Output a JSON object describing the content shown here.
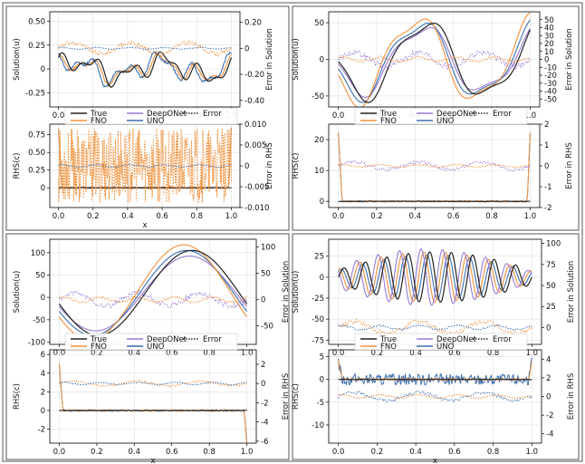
{
  "colors": {
    "true": "#222222",
    "fno": "#f0913a",
    "deeponet": "#9a7ad6",
    "uno": "#3a6fb0",
    "error_default": "#3a6fb0"
  },
  "legend": {
    "entries": [
      {
        "key": "true",
        "label": "True",
        "style": "solid"
      },
      {
        "key": "deeponet",
        "label": "DeepONet",
        "style": "solid"
      },
      {
        "key": "error",
        "label": "Error",
        "style": "dotted"
      },
      {
        "key": "fno",
        "label": "FNO",
        "style": "solid"
      },
      {
        "key": "uno",
        "label": "UNO",
        "style": "solid"
      }
    ]
  },
  "chart_data": [
    {
      "panel": "top-left",
      "type": "line",
      "ylabel": "Solution(u)",
      "y2label": "Error in Solution",
      "ylim": [
        -0.4,
        0.6
      ],
      "yticks": [
        -0.25,
        0.0,
        0.25,
        0.5
      ],
      "y2lim": [
        -0.45,
        0.28
      ],
      "y2ticks": [
        -0.4,
        -0.2,
        0.0,
        0.2
      ],
      "xticks": [
        0.0,
        0.2,
        0.4,
        0.6,
        0.8,
        1.0
      ],
      "xlim": [
        -0.05,
        1.05
      ],
      "fn": "sinusoid",
      "terms": [
        [
          0.08,
          2,
          0.3
        ],
        [
          0.08,
          5,
          1.2
        ],
        [
          0.05,
          9,
          0.4
        ]
      ],
      "offset": 0.0,
      "models": [
        "fno",
        "uno"
      ],
      "noise": 0.04,
      "spikes": true,
      "errors": [
        {
          "key": "fno",
          "level": 0.0,
          "amp": 0.07
        },
        {
          "key": "uno",
          "level": 0.0,
          "amp": 0.01
        }
      ]
    },
    {
      "panel": "top-left-rhs",
      "type": "line",
      "ylabel": "RHS(c)",
      "y2label": "Error in RHS",
      "xlabel": "x",
      "ylim": [
        -0.28,
        0.9
      ],
      "yticks": [
        0.0,
        0.25,
        0.5,
        0.75
      ],
      "y2lim": [
        -0.01,
        0.01
      ],
      "y2ticks": [
        -0.01,
        -0.005,
        0.0,
        0.005,
        0.01
      ],
      "xticks": [
        0.0,
        0.2,
        0.4,
        0.6,
        0.8,
        1.0
      ],
      "xlim": [
        -0.05,
        1.05
      ],
      "fn": "rhs-flat",
      "flat": 0.0,
      "edge_spike": 0.85,
      "errors": [
        {
          "key": "fno",
          "level": 0.0,
          "amp": 0.009,
          "dense": true
        },
        {
          "key": "uno",
          "level": 0.0,
          "amp": 0.0005
        }
      ]
    },
    {
      "panel": "top-right",
      "type": "line",
      "ylabel": "Solution(u)",
      "y2label": "Error in Solution",
      "ylim": [
        -65,
        65
      ],
      "yticks": [
        -50,
        0,
        50
      ],
      "y2lim": [
        -60,
        60
      ],
      "y2ticks": [
        -50,
        -40,
        -30,
        -20,
        -10,
        0,
        10,
        20,
        30,
        40,
        50
      ],
      "xticks": [
        0.0,
        0.2,
        0.4,
        0.6,
        0.8,
        1.0
      ],
      "xlim": [
        -0.05,
        1.05
      ],
      "fn": "sinusoid",
      "terms": [
        [
          50,
          1.6,
          3.3
        ],
        [
          10,
          4,
          0.5
        ]
      ],
      "offset": 0.0,
      "models": [
        "deeponet",
        "uno",
        "fno"
      ],
      "noise": 0.0,
      "errors": [
        {
          "key": "deeponet",
          "level": 0,
          "amp": 15
        },
        {
          "key": "fno",
          "level": 0,
          "amp": 5
        }
      ]
    },
    {
      "panel": "top-right-rhs",
      "type": "line",
      "ylabel": "RHS(c)",
      "y2label": "Error in RHS",
      "ylim": [
        -2,
        25
      ],
      "yticks": [
        0,
        10,
        20
      ],
      "y2lim": [
        -2,
        2
      ],
      "y2ticks": [
        -2,
        -1,
        0,
        1,
        2
      ],
      "xticks": [
        0.0,
        0.2,
        0.4,
        0.6,
        0.8,
        1.0
      ],
      "xlim": [
        -0.05,
        1.05
      ],
      "fn": "rhs-flat",
      "flat": 0.0,
      "edge_spike": 22,
      "errors": [
        {
          "key": "deeponet",
          "level": 0,
          "amp": 0.3
        },
        {
          "key": "fno",
          "level": 0,
          "amp": 0.1
        }
      ]
    },
    {
      "panel": "bottom-left",
      "type": "line",
      "ylabel": "Solution(u)",
      "y2label": "Error in Solution",
      "ylim": [
        -105,
        130
      ],
      "yticks": [
        -100,
        -50,
        0,
        50,
        100
      ],
      "y2lim": [
        -85,
        115
      ],
      "y2ticks": [
        -50,
        0,
        50,
        100
      ],
      "xticks": [
        0.0,
        0.2,
        0.4,
        0.6,
        0.8,
        1.0
      ],
      "xlim": [
        -0.05,
        1.05
      ],
      "fn": "sinusoid",
      "terms": [
        [
          95,
          1.0,
          3.4
        ]
      ],
      "offset": 10,
      "models": [
        "deeponet",
        "uno",
        "fno"
      ],
      "noise": 0.0,
      "errors": [
        {
          "key": "deeponet",
          "level": 0,
          "amp": 20
        },
        {
          "key": "fno",
          "level": 0,
          "amp": 8
        }
      ]
    },
    {
      "panel": "bottom-left-rhs",
      "type": "line",
      "ylabel": "RHS(c)",
      "y2label": "Error in RHS",
      "xlabel": "x",
      "ylim": [
        -3.5,
        6.5
      ],
      "yticks": [
        -2,
        0,
        2,
        4,
        6
      ],
      "y2lim": [
        -6.2,
        3.5
      ],
      "y2ticks": [
        -6,
        -4,
        -2,
        0,
        2
      ],
      "xticks": [
        0.0,
        0.2,
        0.4,
        0.6,
        0.8,
        1.0
      ],
      "xlim": [
        -0.05,
        1.05
      ],
      "fn": "rhs-flat",
      "flat": 0.0,
      "edge_spike": 5,
      "errors": [
        {
          "key": "fno",
          "level": 0,
          "amp": 0.4
        },
        {
          "key": "uno",
          "level": 0,
          "amp": 0.2
        }
      ]
    },
    {
      "panel": "bottom-right",
      "type": "line",
      "ylabel": "Solution(u)",
      "y2label": "Error in Solution",
      "ylim": [
        -80,
        45
      ],
      "yticks": [
        -75,
        -50,
        -25,
        0,
        25
      ],
      "y2lim": [
        -20,
        105
      ],
      "y2ticks": [
        0,
        25,
        50,
        75,
        100
      ],
      "xticks": [
        0.0,
        0.2,
        0.4,
        0.6,
        0.8,
        1.0
      ],
      "xlim": [
        -0.05,
        1.05
      ],
      "fn": "modulated",
      "carrier": 9,
      "envelope": 30,
      "offset": 0,
      "models": [
        "uno",
        "fno",
        "deeponet"
      ],
      "noise": 0.0,
      "errors": [
        {
          "key": "fno",
          "level": 0,
          "amp": 12
        },
        {
          "key": "uno",
          "level": 0,
          "amp": 4
        }
      ]
    },
    {
      "panel": "bottom-right-rhs",
      "type": "line",
      "ylabel": "RHS(c)",
      "y2label": "Error in RHS",
      "xlabel": "x",
      "ylim": [
        -14,
        6.5
      ],
      "yticks": [
        -10,
        -5,
        0,
        5
      ],
      "y2lim": [
        -5,
        5
      ],
      "y2ticks": [
        -4,
        -2,
        0,
        2,
        4
      ],
      "xticks": [
        0.0,
        0.2,
        0.4,
        0.6,
        0.8,
        1.0
      ],
      "xlim": [
        -0.05,
        1.05
      ],
      "fn": "rhs-noisy",
      "flat": 0.0,
      "edge_spike": 4,
      "errors": [
        {
          "key": "uno",
          "level": 0,
          "amp": 0.7
        },
        {
          "key": "fno",
          "level": 0,
          "amp": 0.3
        }
      ]
    }
  ]
}
